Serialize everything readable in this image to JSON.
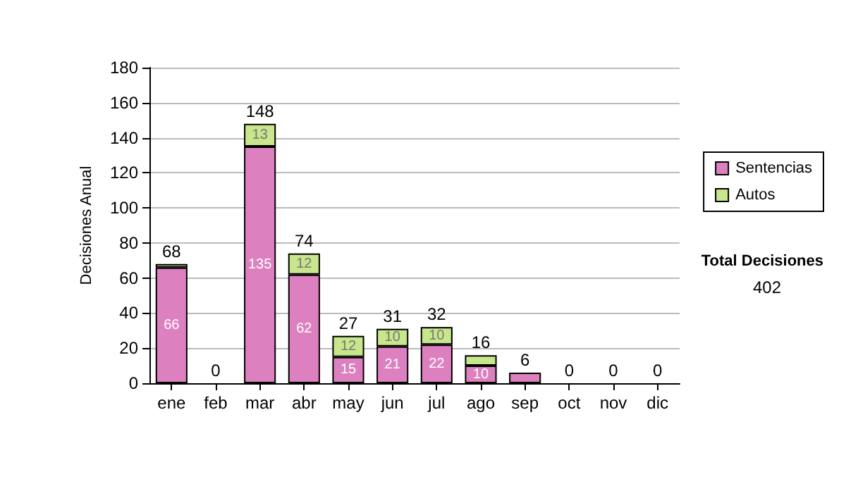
{
  "chart_data": {
    "type": "bar",
    "stacked": true,
    "ylabel": "Decisiones Anual",
    "categories": [
      "ene",
      "feb",
      "mar",
      "abr",
      "may",
      "jun",
      "jul",
      "ago",
      "sep",
      "oct",
      "nov",
      "dic"
    ],
    "series": [
      {
        "name": "Sentencias",
        "color": "#dd80c0",
        "values": [
          66,
          0,
          135,
          62,
          15,
          21,
          22,
          10,
          6,
          0,
          0,
          0
        ],
        "value_labels": [
          "66",
          null,
          "135",
          "62",
          "15",
          "21",
          "22",
          "10",
          null,
          null,
          null,
          null
        ]
      },
      {
        "name": "Autos",
        "color": "#c8e68c",
        "values": [
          2,
          0,
          13,
          12,
          12,
          10,
          10,
          6,
          null,
          0,
          0,
          0
        ],
        "value_labels": [
          null,
          null,
          "13",
          "12",
          "12",
          "10",
          "10",
          null,
          null,
          null,
          null,
          null
        ]
      }
    ],
    "totals": [
      "68",
      "0",
      "148",
      "74",
      "27",
      "31",
      "32",
      "16",
      "6",
      "0",
      "0",
      "0"
    ],
    "ylim": [
      0,
      180
    ],
    "yticks": [
      0,
      20,
      40,
      60,
      80,
      100,
      120,
      140,
      160,
      180
    ],
    "grid": "y",
    "legend": "right",
    "annotations": [
      "Total Decisiones",
      "402"
    ]
  }
}
